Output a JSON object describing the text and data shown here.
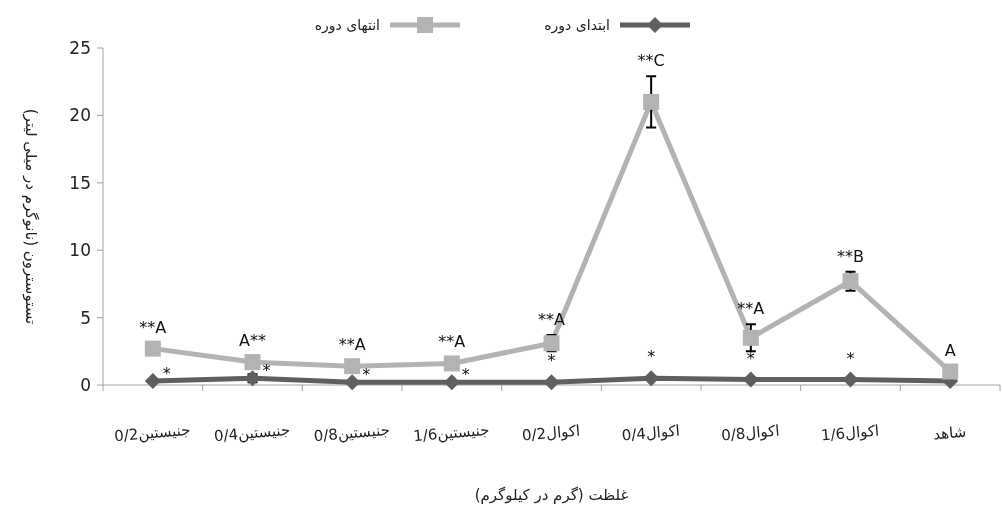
{
  "chart_data": {
    "type": "line",
    "xlabel": "غلظت (گرم در کیلوگرم)",
    "ylabel": "تستوسترون (نانوگرم در میلی لیتر)",
    "categories": [
      "0/2جنیستین",
      "0/4جنیستین",
      "0/8جنیستین",
      "1/6جنیستین",
      "0/2اکوال",
      "0/4اکوال",
      "0/8اکوال",
      "1/6اکوال",
      "شاهد"
    ],
    "ylim": [
      0,
      25
    ],
    "yticks": [
      0,
      5,
      10,
      15,
      20,
      25
    ],
    "legend": "top",
    "grid": false,
    "series": [
      {
        "name": "ابتدای دوره",
        "color": "#5f5f5f",
        "marker": "diamond",
        "values": [
          0.3,
          0.5,
          0.2,
          0.2,
          0.2,
          0.5,
          0.4,
          0.4,
          0.3
        ],
        "errors": [
          null,
          0.3,
          null,
          null,
          null,
          null,
          null,
          null,
          null
        ]
      },
      {
        "name": "انتهای دوره",
        "color": "#b3b3b3",
        "marker": "square",
        "values": [
          2.7,
          1.7,
          1.4,
          1.6,
          3.1,
          21.0,
          3.5,
          7.7,
          1.0
        ],
        "errors": [
          null,
          null,
          null,
          null,
          0.6,
          1.9,
          1.0,
          0.7,
          null
        ]
      }
    ],
    "annotations": [
      {
        "text": "**A",
        "x": "0/2جنیستین",
        "y": 2.7
      },
      {
        "text": "A**",
        "x": "0/4جنیستین",
        "y": 1.7
      },
      {
        "text": "**A",
        "x": "0/8جنیستین",
        "y": 1.4
      },
      {
        "text": "**A",
        "x": "1/6جنیستین",
        "y": 1.6
      },
      {
        "text": "**A",
        "x": "0/2اکوال",
        "y": 3.1
      },
      {
        "text": "**C",
        "x": "0/4اکوال",
        "y": 21.0
      },
      {
        "text": "**A",
        "x": "0/8اکوال",
        "y": 3.5
      },
      {
        "text": "**B",
        "x": "1/6اکوال",
        "y": 7.7
      },
      {
        "text": "A",
        "x": "شاهد",
        "y": 1.0
      },
      {
        "text": "*",
        "x": "0/2جنیستین",
        "y": 0.3
      },
      {
        "text": "*",
        "x": "0/4جنیستین",
        "y": 0.5
      },
      {
        "text": "*",
        "x": "0/8جنیستین",
        "y": 0.2
      },
      {
        "text": "*",
        "x": "1/6جنیستین",
        "y": 0.2
      },
      {
        "text": "*",
        "x": "0/2اکوال",
        "y": 0.2
      },
      {
        "text": "*",
        "x": "0/4اکوال",
        "y": 0.5
      },
      {
        "text": "*",
        "x": "0/8اکوال",
        "y": 0.4
      },
      {
        "text": "*",
        "x": "1/6اکوال",
        "y": 0.4
      }
    ]
  }
}
